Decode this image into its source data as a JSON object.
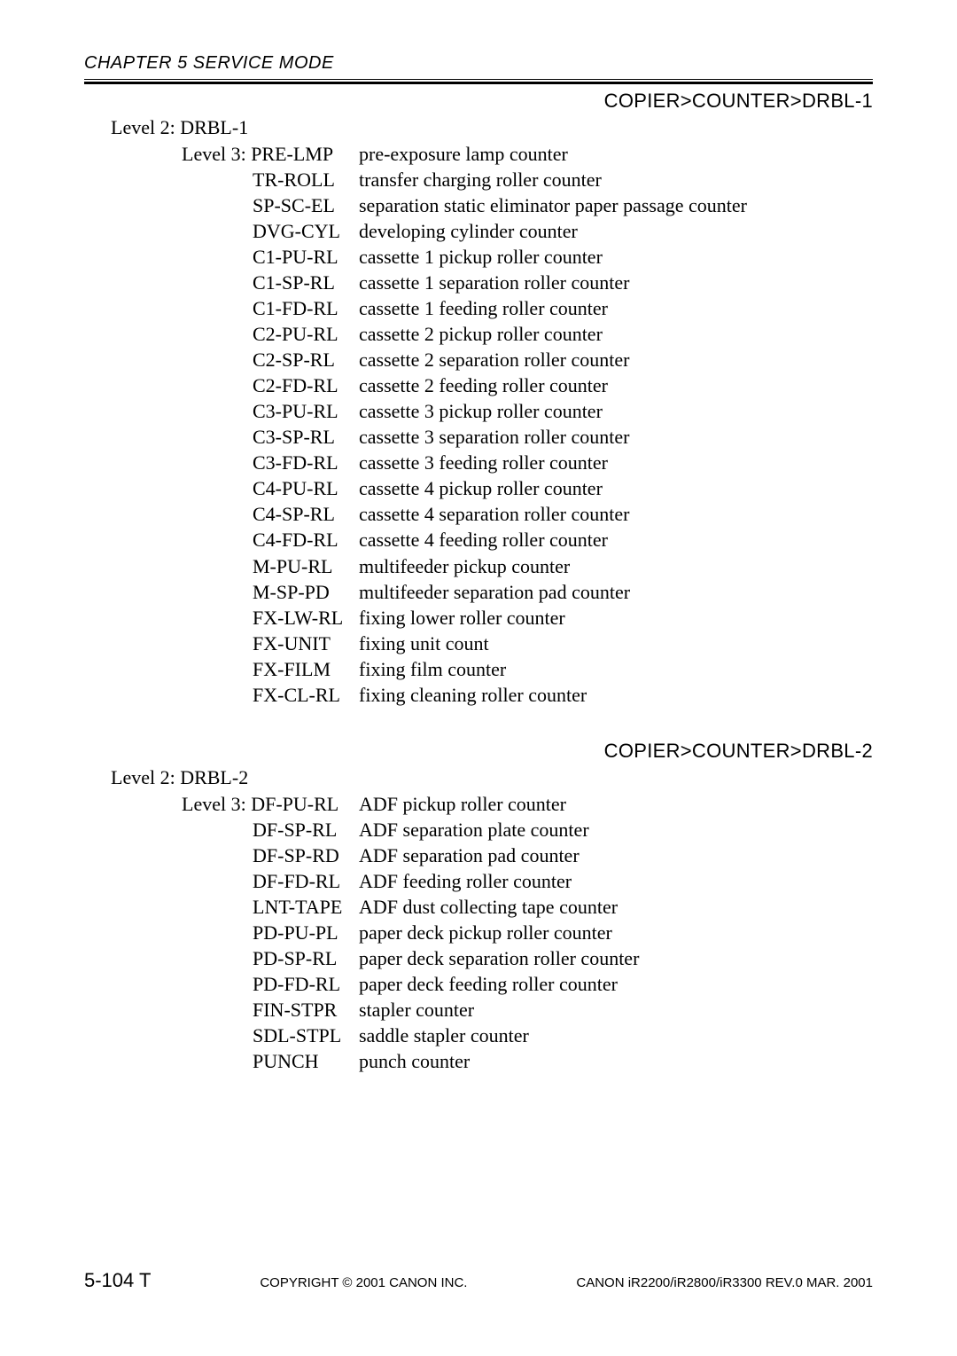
{
  "header": {
    "chapter": "CHAPTER 5 SERVICE MODE"
  },
  "section1": {
    "breadcrumb": "COPIER>COUNTER>DRBL-1",
    "level2": "Level 2: DRBL-1",
    "level3_prefix": "Level 3: ",
    "entries": [
      {
        "code": "PRE-LMP",
        "desc": "pre-exposure lamp counter"
      },
      {
        "code": "TR-ROLL",
        "desc": "transfer charging roller counter"
      },
      {
        "code": "SP-SC-EL",
        "desc": "separation static eliminator paper passage counter"
      },
      {
        "code": "DVG-CYL",
        "desc": "developing cylinder counter"
      },
      {
        "code": "C1-PU-RL",
        "desc": "cassette 1 pickup roller counter"
      },
      {
        "code": "C1-SP-RL",
        "desc": "cassette 1 separation roller counter"
      },
      {
        "code": "C1-FD-RL",
        "desc": "cassette 1 feeding roller counter"
      },
      {
        "code": "C2-PU-RL",
        "desc": "cassette 2 pickup roller counter"
      },
      {
        "code": "C2-SP-RL",
        "desc": "cassette 2 separation roller counter"
      },
      {
        "code": "C2-FD-RL",
        "desc": "cassette 2 feeding roller counter"
      },
      {
        "code": "C3-PU-RL",
        "desc": "cassette 3 pickup roller counter"
      },
      {
        "code": "C3-SP-RL",
        "desc": "cassette 3 separation roller counter"
      },
      {
        "code": "C3-FD-RL",
        "desc": "cassette 3 feeding roller counter"
      },
      {
        "code": "C4-PU-RL",
        "desc": "cassette 4 pickup roller counter"
      },
      {
        "code": "C4-SP-RL",
        "desc": "cassette 4 separation roller counter"
      },
      {
        "code": "C4-FD-RL",
        "desc": "cassette 4 feeding roller counter"
      },
      {
        "code": "M-PU-RL",
        "desc": "multifeeder pickup counter"
      },
      {
        "code": "M-SP-PD",
        "desc": "multifeeder separation pad counter"
      },
      {
        "code": "FX-LW-RL",
        "desc": "fixing lower roller counter"
      },
      {
        "code": "FX-UNIT",
        "desc": " fixing unit count"
      },
      {
        "code": "FX-FILM",
        "desc": "fixing film counter"
      },
      {
        "code": "FX-CL-RL",
        "desc": "fixing cleaning roller counter"
      }
    ]
  },
  "section2": {
    "breadcrumb": "COPIER>COUNTER>DRBL-2",
    "level2": "Level 2: DRBL-2",
    "level3_prefix": "Level 3: ",
    "entries": [
      {
        "code": "DF-PU-RL",
        "desc": "ADF pickup roller counter"
      },
      {
        "code": "DF-SP-RL",
        "desc": "ADF separation plate counter"
      },
      {
        "code": "DF-SP-RD",
        "desc": "ADF separation pad counter"
      },
      {
        "code": "DF-FD-RL",
        "desc": "ADF feeding roller counter"
      },
      {
        "code": "LNT-TAPE",
        "desc": "ADF dust collecting tape counter"
      },
      {
        "code": "PD-PU-PL",
        "desc": "paper deck pickup roller counter"
      },
      {
        "code": "PD-SP-RL",
        "desc": "paper deck separation roller counter"
      },
      {
        "code": "PD-FD-RL",
        "desc": "paper deck feeding roller counter"
      },
      {
        "code": "FIN-STPR",
        "desc": "stapler counter"
      },
      {
        "code": "SDL-STPL",
        "desc": "saddle stapler counter"
      },
      {
        "code": "PUNCH",
        "desc": "punch counter"
      }
    ]
  },
  "footer": {
    "page_number": "5-104 T",
    "copyright": "COPYRIGHT © 2001 CANON INC.",
    "doc_ref": "CANON iR2200/iR2800/iR3300 REV.0 MAR. 2001"
  }
}
